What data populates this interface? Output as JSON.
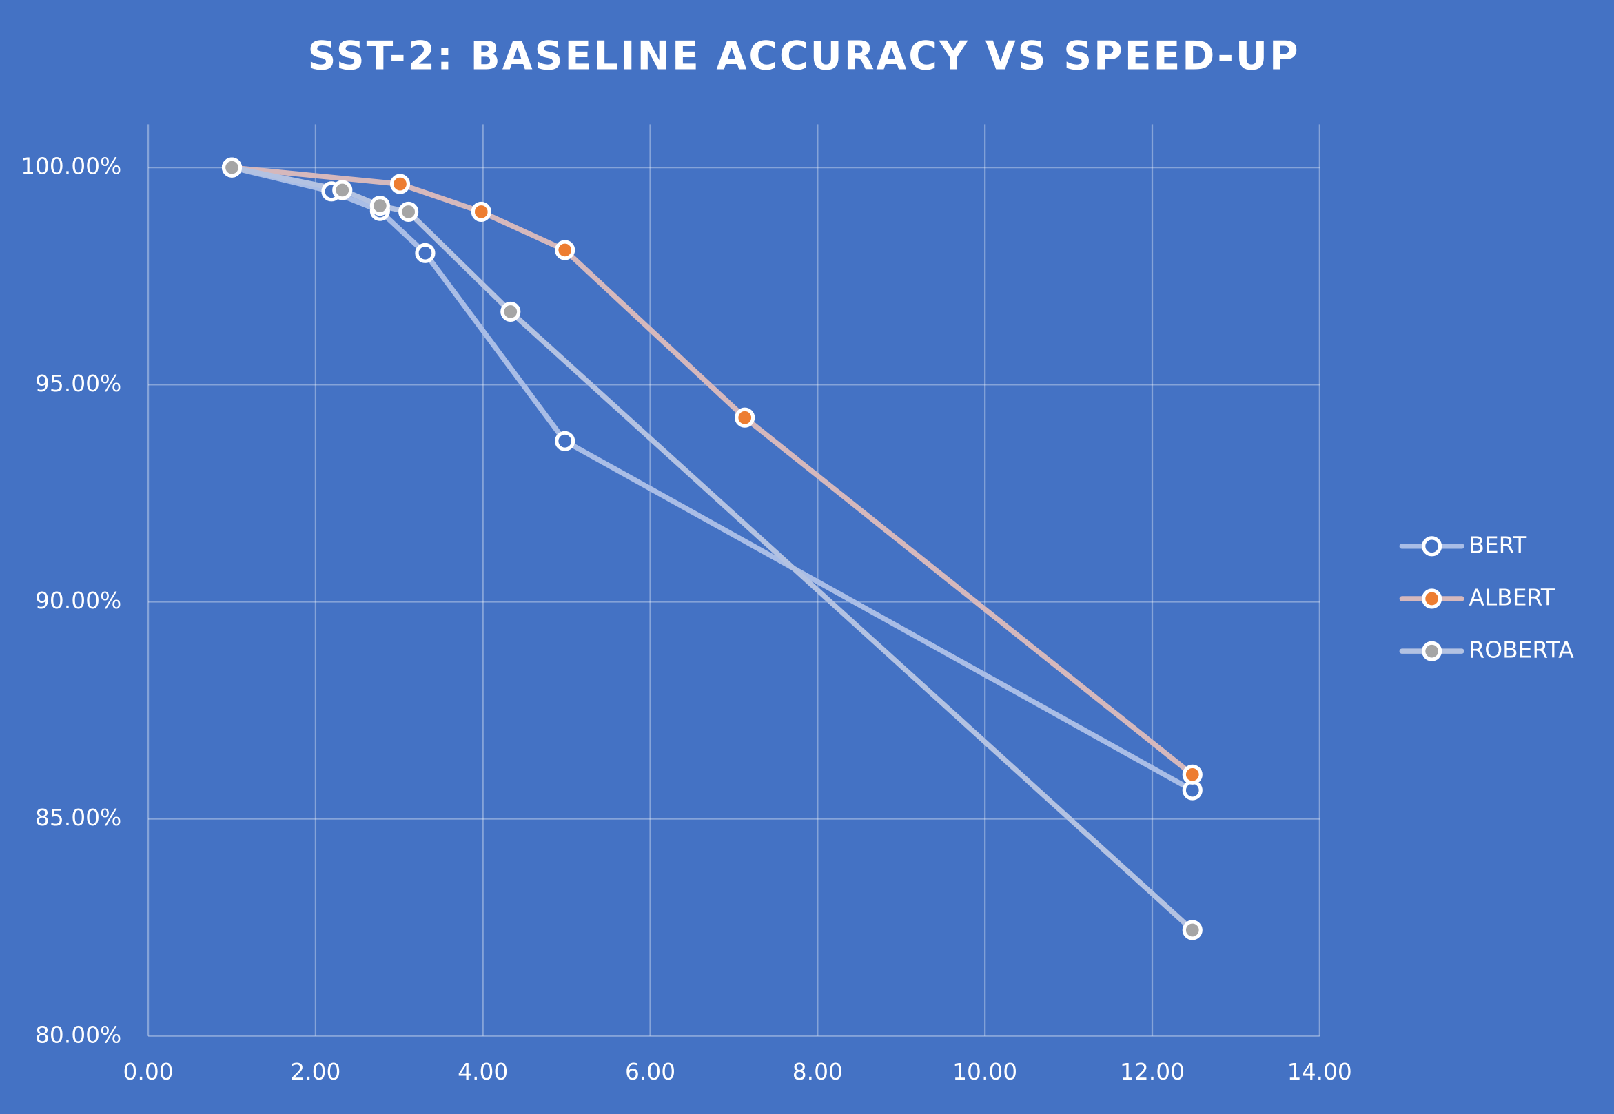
{
  "chart_data": {
    "type": "scatter",
    "title": "SST-2: BASELINE ACCURACY VS SPEED-UP",
    "xlim": [
      0,
      14
    ],
    "xticks": [
      {
        "value": 0,
        "label": "0.00"
      },
      {
        "value": 2,
        "label": "2.00"
      },
      {
        "value": 4,
        "label": "4.00"
      },
      {
        "value": 6,
        "label": "6.00"
      },
      {
        "value": 8,
        "label": "8.00"
      },
      {
        "value": 10,
        "label": "10.00"
      },
      {
        "value": 12,
        "label": "12.00"
      },
      {
        "value": 14,
        "label": "14.00"
      }
    ],
    "ylim": [
      80,
      100
    ],
    "yticks": [
      {
        "value": 80,
        "label": "80.00%"
      },
      {
        "value": 85,
        "label": "85.00%"
      },
      {
        "value": 90,
        "label": "90.00%"
      },
      {
        "value": 95,
        "label": "95.00%"
      },
      {
        "value": 100,
        "label": "100.00%"
      }
    ],
    "grid": true,
    "legend": "right",
    "series": [
      {
        "name": "BERT",
        "color": "#4472c4",
        "line_color": "#a9bde6",
        "x": [
          1,
          2.19,
          2.77,
          3.31,
          4.98,
          12.48
        ],
        "values": [
          100,
          99.45,
          99.0,
          98.03,
          93.7,
          85.66
        ]
      },
      {
        "name": "ALBERT",
        "color": "#ed7d31",
        "line_color": "#d6b8bc",
        "x": [
          1,
          3.01,
          3.98,
          4.98,
          7.13,
          12.48
        ],
        "values": [
          100,
          99.62,
          98.98,
          98.1,
          94.24,
          86.02
        ]
      },
      {
        "name": "ROBERTA",
        "color": "#a5a5a5",
        "line_color": "#b3c2e2",
        "x": [
          1,
          2.32,
          2.77,
          3.11,
          4.33,
          12.48
        ],
        "values": [
          100,
          99.48,
          99.12,
          98.98,
          96.68,
          82.44
        ]
      }
    ]
  }
}
